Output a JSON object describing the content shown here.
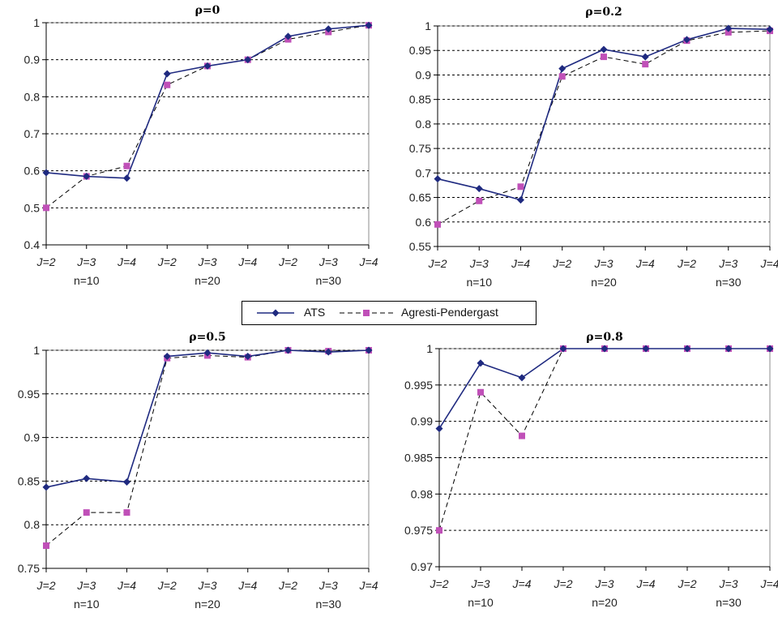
{
  "legend": {
    "ats_label": "ATS",
    "ap_label": "Agresti-Pendergast"
  },
  "colors": {
    "ats": "#1f2a80",
    "agresti_pendergast": "#c050b8"
  },
  "chart_data": [
    {
      "type": "line",
      "title": "ρ=0",
      "categories": [
        "J=2",
        "J=3",
        "J=4",
        "J=2",
        "J=3",
        "J=4",
        "J=2",
        "J=3",
        "J=4"
      ],
      "groups": [
        "n=10",
        "n=20",
        "n=30"
      ],
      "ylim": [
        0.4,
        1
      ],
      "yticks": [
        "0.4",
        "0.5",
        "0.6",
        "0.7",
        "0.8",
        "0.9",
        "1"
      ],
      "series": [
        {
          "name": "ATS",
          "values": [
            0.595,
            0.585,
            0.58,
            0.862,
            0.883,
            0.9,
            0.963,
            0.983,
            0.993
          ]
        },
        {
          "name": "Agresti-Pendergast",
          "values": [
            0.5,
            0.585,
            0.613,
            0.832,
            0.883,
            0.9,
            0.955,
            0.975,
            0.993
          ]
        }
      ]
    },
    {
      "type": "line",
      "title": "ρ=0.2",
      "categories": [
        "J=2",
        "J=3",
        "J=4",
        "J=2",
        "J=3",
        "J=4",
        "J=2",
        "J=3",
        "J=4"
      ],
      "groups": [
        "n=10",
        "n=20",
        "n=30"
      ],
      "ylim": [
        0.55,
        1
      ],
      "yticks": [
        "0.55",
        "0.6",
        "0.65",
        "0.7",
        "0.75",
        "0.8",
        "0.85",
        "0.9",
        "0.95",
        "1"
      ],
      "series": [
        {
          "name": "ATS",
          "values": [
            0.688,
            0.668,
            0.645,
            0.913,
            0.952,
            0.937,
            0.972,
            0.995,
            0.993
          ]
        },
        {
          "name": "Agresti-Pendergast",
          "values": [
            0.595,
            0.643,
            0.672,
            0.897,
            0.937,
            0.922,
            0.97,
            0.987,
            0.99
          ]
        }
      ]
    },
    {
      "type": "line",
      "title": "ρ=0.5",
      "categories": [
        "J=2",
        "J=3",
        "J=4",
        "J=2",
        "J=3",
        "J=4",
        "J=2",
        "J=3",
        "J=4"
      ],
      "groups": [
        "n=10",
        "n=20",
        "n=30"
      ],
      "ylim": [
        0.75,
        1
      ],
      "yticks": [
        "0.75",
        "0.8",
        "0.85",
        "0.9",
        "0.95",
        "1"
      ],
      "series": [
        {
          "name": "ATS",
          "values": [
            0.843,
            0.853,
            0.849,
            0.993,
            0.997,
            0.993,
            1.0,
            0.998,
            1.0
          ]
        },
        {
          "name": "Agresti-Pendergast",
          "values": [
            0.776,
            0.814,
            0.814,
            0.991,
            0.994,
            0.992,
            1.0,
            0.999,
            1.0
          ]
        }
      ]
    },
    {
      "type": "line",
      "title": "ρ=0.8",
      "categories": [
        "J=2",
        "J=3",
        "J=4",
        "J=2",
        "J=3",
        "J=4",
        "J=2",
        "J=3",
        "J=4"
      ],
      "groups": [
        "n=10",
        "n=20",
        "n=30"
      ],
      "ylim": [
        0.97,
        1
      ],
      "yticks": [
        "0.97",
        "0.975",
        "0.98",
        "0.985",
        "0.99",
        "0.995",
        "1"
      ],
      "series": [
        {
          "name": "ATS",
          "values": [
            0.989,
            0.998,
            0.996,
            1.0,
            1.0,
            1.0,
            1.0,
            1.0,
            1.0
          ]
        },
        {
          "name": "Agresti-Pendergast",
          "values": [
            0.975,
            0.994,
            0.988,
            1.0,
            1.0,
            1.0,
            1.0,
            1.0,
            1.0
          ]
        }
      ]
    }
  ]
}
